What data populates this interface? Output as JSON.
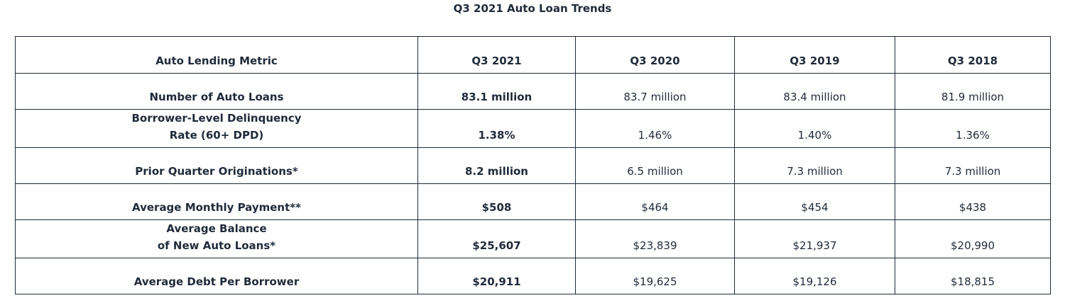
{
  "title": "Q3 2021 Auto Loan Trends",
  "table": {
    "headers": [
      "Auto Lending Metric",
      "Q3 2021",
      "Q3 2020",
      "Q3 2019",
      "Q3 2018"
    ],
    "rows": [
      {
        "metric": [
          "Number of Auto Loans"
        ],
        "values": [
          "83.1 million",
          "83.7 million",
          "83.4 million",
          "81.9 million"
        ]
      },
      {
        "metric": [
          "Borrower-Level Delinquency",
          "Rate (60+ DPD)"
        ],
        "values": [
          "1.38%",
          "1.46%",
          "1.40%",
          "1.36%"
        ]
      },
      {
        "metric": [
          "Prior Quarter Originations*"
        ],
        "values": [
          "8.2 million",
          "6.5 million",
          "7.3 million",
          "7.3 million"
        ]
      },
      {
        "metric": [
          "Average Monthly Payment**"
        ],
        "values": [
          "$508",
          "$464",
          "$454",
          "$438"
        ]
      },
      {
        "metric": [
          "Average Balance",
          "of New Auto Loans*"
        ],
        "values": [
          "$25,607",
          "$23,839",
          "$21,937",
          "$20,990"
        ]
      },
      {
        "metric": [
          "Average Debt Per Borrower"
        ],
        "values": [
          "$20,911",
          "$19,625",
          "$19,126",
          "$18,815"
        ]
      }
    ]
  }
}
